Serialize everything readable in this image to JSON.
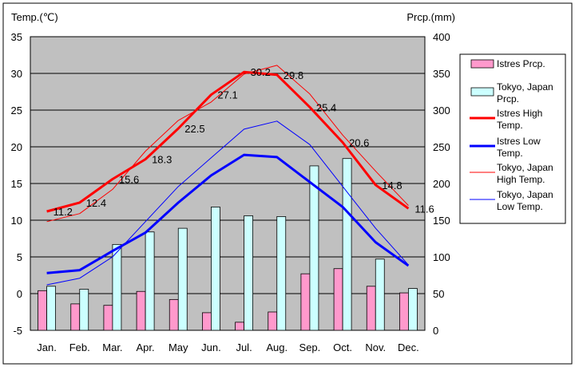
{
  "chart_data": {
    "type": "bar+line",
    "left_axis_title": "Temp.(℃)",
    "right_axis_title": "Prcp.(mm)",
    "categories": [
      "Jan.",
      "Feb.",
      "Mar.",
      "Apr.",
      "May",
      "Jun.",
      "Jul.",
      "Aug.",
      "Sep.",
      "Oct.",
      "Nov.",
      "Dec."
    ],
    "left_ylim": [
      -5,
      35
    ],
    "left_ticks": [
      -5,
      0,
      5,
      10,
      15,
      20,
      25,
      30,
      35
    ],
    "right_ylim": [
      0,
      400
    ],
    "right_ticks": [
      0,
      50,
      100,
      150,
      200,
      250,
      300,
      350,
      400
    ],
    "grid": true,
    "legend_position": "right",
    "bar_series": [
      {
        "name": "Istres Prcp.",
        "axis": "right",
        "color": "#ff99cc",
        "values": [
          54,
          36,
          34,
          53,
          42,
          24,
          11,
          25,
          77,
          84,
          60,
          51
        ]
      },
      {
        "name": "Tokyo, Japan Prcp.",
        "axis": "right",
        "color": "#ccffff",
        "values": [
          60,
          56,
          117,
          134,
          139,
          168,
          156,
          155,
          224,
          234,
          97,
          57
        ]
      }
    ],
    "line_series": [
      {
        "name": "Istres High Temp.",
        "axis": "left",
        "color": "#ff0000",
        "width": 3,
        "values": [
          11.2,
          12.4,
          15.6,
          18.3,
          22.5,
          27.1,
          30.2,
          29.8,
          25.4,
          20.6,
          14.8,
          11.6
        ],
        "data_labels": [
          "11.2",
          "12.4",
          "15.6",
          "18.3",
          "22.5",
          "27.1",
          "30.2",
          "29.8",
          "25.4",
          "20.6",
          "14.8",
          "11.6"
        ]
      },
      {
        "name": "Istres Low Temp.",
        "axis": "left",
        "color": "#0000ff",
        "width": 3,
        "values": [
          2.8,
          3.2,
          5.8,
          8.3,
          12.4,
          16.1,
          18.9,
          18.6,
          15.2,
          11.8,
          7.0,
          3.8
        ]
      },
      {
        "name": "Tokyo, Japan High Temp.",
        "axis": "left",
        "color": "#ff0000",
        "width": 1,
        "values": [
          9.8,
          10.9,
          14.2,
          19.4,
          23.6,
          26.1,
          29.9,
          31.1,
          27.2,
          21.6,
          16.7,
          12.0
        ]
      },
      {
        "name": "Tokyo, Japan Low Temp.",
        "axis": "left",
        "color": "#0000ff",
        "width": 1,
        "values": [
          1.2,
          2.1,
          5.0,
          9.8,
          14.6,
          18.5,
          22.4,
          23.5,
          20.3,
          14.6,
          8.9,
          3.9
        ]
      }
    ],
    "legend": [
      {
        "label": "Istres Prcp.",
        "kind": "bar",
        "color": "#ff99cc"
      },
      {
        "label": "Tokyo, Japan Prcp.",
        "kind": "bar",
        "color": "#ccffff"
      },
      {
        "label": "Istres High Temp.",
        "kind": "line",
        "color": "#ff0000",
        "width": 3
      },
      {
        "label": "Istres Low Temp.",
        "kind": "line",
        "color": "#0000ff",
        "width": 3
      },
      {
        "label": "Tokyo, Japan High Temp.",
        "kind": "line",
        "color": "#ff0000",
        "width": 1
      },
      {
        "label": "Tokyo, Japan Low Temp.",
        "kind": "line",
        "color": "#0000ff",
        "width": 1
      }
    ]
  }
}
